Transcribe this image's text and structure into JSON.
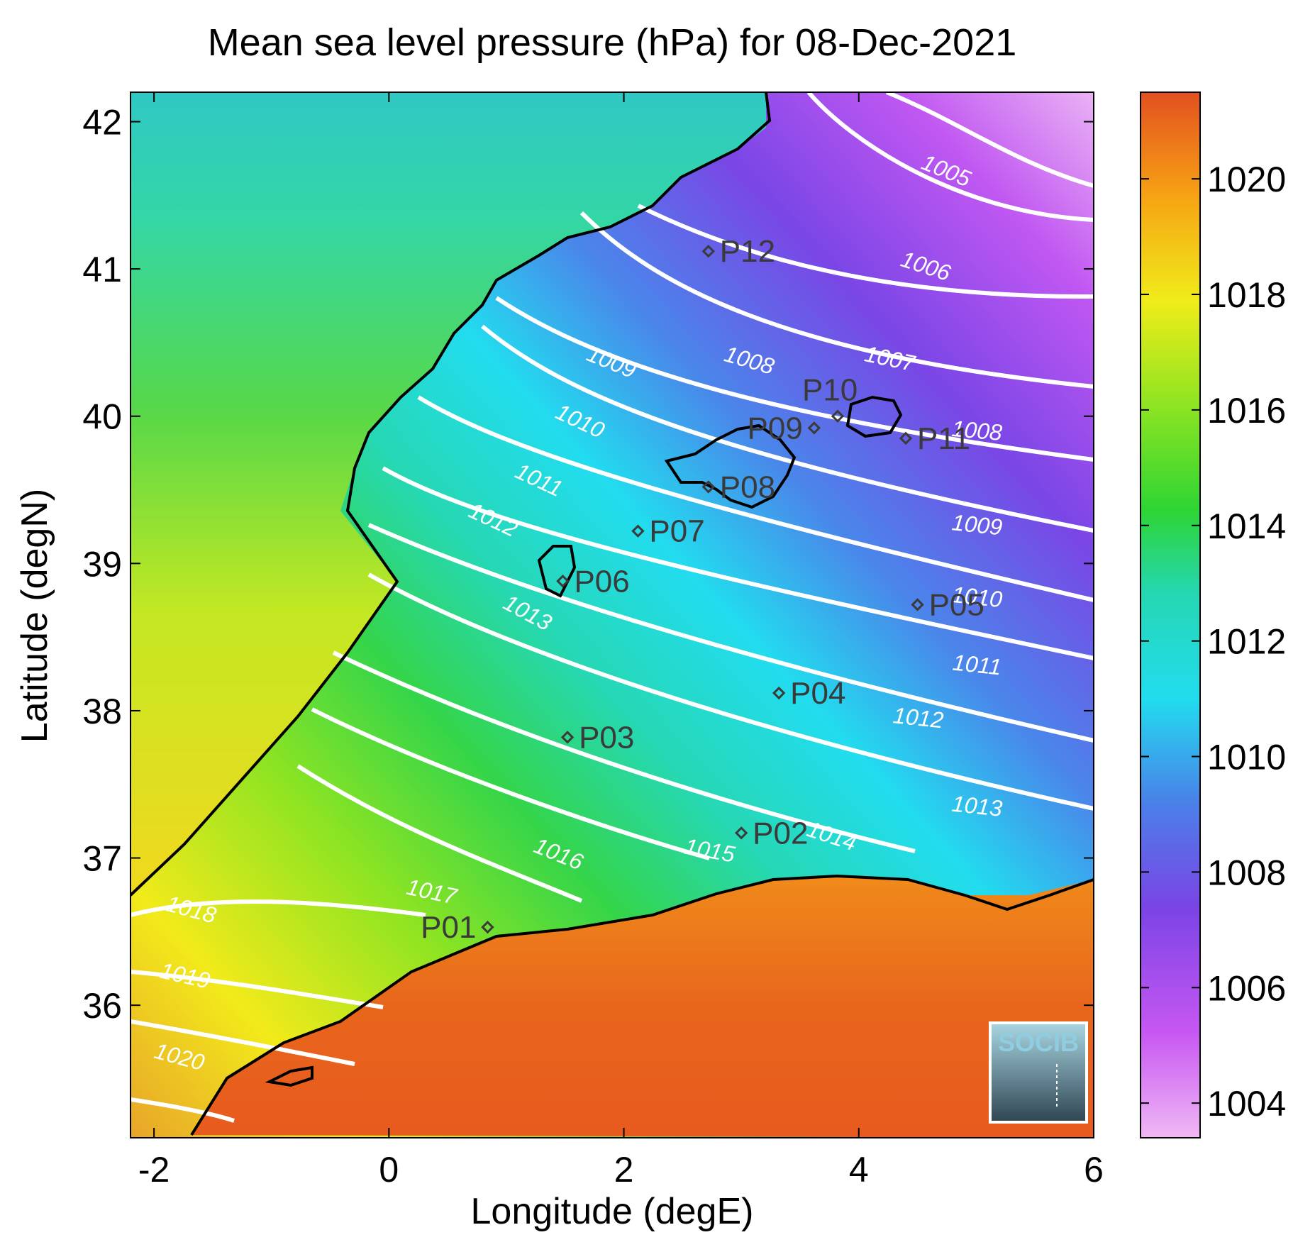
{
  "title": "Mean sea level pressure (hPa) for 08-Dec-2021",
  "xlabel": "Longitude (degE)",
  "ylabel": "Latitude (degN)",
  "logo_text": "SOCIB",
  "chart_data": {
    "type": "heatmap",
    "xlim": [
      -2.2,
      6.0
    ],
    "ylim": [
      35.1,
      42.2
    ],
    "x_ticks": [
      -2,
      0,
      2,
      4,
      6
    ],
    "x_tick_labels": [
      "-2",
      "0",
      "2",
      "4",
      "6"
    ],
    "y_ticks": [
      36,
      37,
      38,
      39,
      40,
      41,
      42
    ],
    "y_tick_labels": [
      "36",
      "37",
      "38",
      "39",
      "40",
      "41",
      "42"
    ],
    "colorbar": {
      "range": [
        1003.4,
        1021.5
      ],
      "ticks": [
        1004,
        1006,
        1008,
        1010,
        1012,
        1014,
        1016,
        1018,
        1020
      ],
      "tick_labels": [
        "1004",
        "1006",
        "1008",
        "1010",
        "1012",
        "1014",
        "1016",
        "1018",
        "1020"
      ],
      "colormap": [
        "#f0b8f4",
        "#c757f2",
        "#7b44e6",
        "#4a80e8",
        "#22dcef",
        "#25d7b3",
        "#2ed534",
        "#8de422",
        "#f0ec1a",
        "#f7a314",
        "#e25020"
      ]
    },
    "contour_labels": [
      {
        "text": "1005",
        "lon": 4.72,
        "lat": 41.62,
        "angle": 22
      },
      {
        "text": "1006",
        "lon": 4.55,
        "lat": 40.97,
        "angle": 18
      },
      {
        "text": "1007",
        "lon": 4.25,
        "lat": 40.34,
        "angle": 12
      },
      {
        "text": "1008",
        "lon": 3.05,
        "lat": 40.33,
        "angle": 16
      },
      {
        "text": "1008",
        "lon": 5.0,
        "lat": 39.85,
        "angle": 5
      },
      {
        "text": "1009",
        "lon": 1.87,
        "lat": 40.32,
        "angle": 22
      },
      {
        "text": "1009",
        "lon": 5.0,
        "lat": 39.21,
        "angle": 6
      },
      {
        "text": "1010",
        "lon": 1.6,
        "lat": 39.92,
        "angle": 25
      },
      {
        "text": "1010",
        "lon": 5.0,
        "lat": 38.72,
        "angle": 6
      },
      {
        "text": "1011",
        "lon": 1.25,
        "lat": 39.52,
        "angle": 25
      },
      {
        "text": "1011",
        "lon": 5.0,
        "lat": 38.26,
        "angle": 6
      },
      {
        "text": "1012",
        "lon": 0.86,
        "lat": 39.25,
        "angle": 25
      },
      {
        "text": "1012",
        "lon": 4.5,
        "lat": 37.9,
        "angle": 6
      },
      {
        "text": "1013",
        "lon": 1.15,
        "lat": 38.62,
        "angle": 28
      },
      {
        "text": "1013",
        "lon": 5.0,
        "lat": 37.3,
        "angle": 6
      },
      {
        "text": "1014",
        "lon": 3.75,
        "lat": 37.1,
        "angle": 18
      },
      {
        "text": "1015",
        "lon": 2.72,
        "lat": 37.0,
        "angle": 10
      },
      {
        "text": "1016",
        "lon": 1.42,
        "lat": 36.98,
        "angle": 22
      },
      {
        "text": "1017",
        "lon": 0.35,
        "lat": 36.72,
        "angle": 12
      },
      {
        "text": "1018",
        "lon": -1.7,
        "lat": 36.6,
        "angle": 15
      },
      {
        "text": "1019",
        "lon": -1.75,
        "lat": 36.15,
        "angle": 13
      },
      {
        "text": "1020",
        "lon": -1.8,
        "lat": 35.6,
        "angle": 15
      }
    ],
    "stations": [
      {
        "name": "P01",
        "lon": 0.84,
        "lat": 36.53,
        "label_side": "left"
      },
      {
        "name": "P02",
        "lon": 3.0,
        "lat": 37.17,
        "label_side": "right"
      },
      {
        "name": "P03",
        "lon": 1.52,
        "lat": 37.82,
        "label_side": "right"
      },
      {
        "name": "P04",
        "lon": 3.32,
        "lat": 38.12,
        "label_side": "right"
      },
      {
        "name": "P05",
        "lon": 4.5,
        "lat": 38.72,
        "label_side": "right"
      },
      {
        "name": "P06",
        "lon": 1.48,
        "lat": 38.88,
        "label_side": "right"
      },
      {
        "name": "P07",
        "lon": 2.12,
        "lat": 39.22,
        "label_side": "right"
      },
      {
        "name": "P08",
        "lon": 2.72,
        "lat": 39.52,
        "label_side": "right"
      },
      {
        "name": "P09",
        "lon": 3.62,
        "lat": 39.92,
        "label_side": "left"
      },
      {
        "name": "P10",
        "lon": 3.82,
        "lat": 40.0,
        "label_side": "above"
      },
      {
        "name": "P11",
        "lon": 4.4,
        "lat": 39.85,
        "label_side": "right"
      },
      {
        "name": "P12",
        "lon": 2.72,
        "lat": 41.12,
        "label_side": "right"
      }
    ]
  }
}
